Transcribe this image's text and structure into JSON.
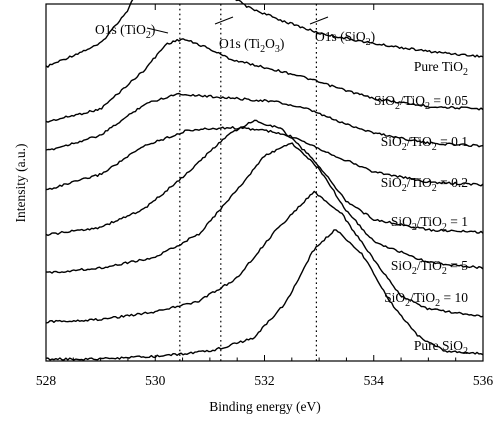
{
  "chart_data": {
    "type": "line",
    "xlabel": "Binding energy (eV)",
    "ylabel": "Intensity (a.u.)",
    "xlim": [
      528,
      536
    ],
    "x_ticks": [
      "528",
      "530",
      "532",
      "534",
      "536"
    ],
    "grid": false,
    "legend": "none (series labelled inline at right)",
    "reference_lines": [
      {
        "label": "O1s (TiO₂)",
        "x": 530.45
      },
      {
        "label": "O1s (Ti₂O₃)",
        "x": 531.2
      },
      {
        "label": "O1s (SiO₂)",
        "x": 532.95
      }
    ],
    "series": [
      {
        "name": "Pure TiO₂",
        "x": [
          528.0,
          529.0,
          529.5,
          529.9,
          530.2,
          530.5,
          530.8,
          531.2,
          531.7,
          532.3,
          533.0,
          534.0,
          535.0,
          536.0
        ],
        "y": [
          0.0,
          0.09,
          0.22,
          0.4,
          0.5,
          0.52,
          0.43,
          0.3,
          0.23,
          0.18,
          0.13,
          0.09,
          0.06,
          0.04
        ]
      },
      {
        "name": "SiO₂/TiO₂ = 0.05",
        "x": [
          528.0,
          529.0,
          529.8,
          530.2,
          530.5,
          530.9,
          531.4,
          532.0,
          532.6,
          533.2,
          534.0,
          535.0,
          536.0
        ],
        "y": [
          0.0,
          0.05,
          0.2,
          0.3,
          0.32,
          0.29,
          0.24,
          0.21,
          0.18,
          0.14,
          0.09,
          0.06,
          0.05
        ]
      },
      {
        "name": "SiO₂/TiO₂ = 0.1",
        "x": [
          528.0,
          529.0,
          529.8,
          530.4,
          531.0,
          531.6,
          532.2,
          532.8,
          533.4,
          534.0,
          535.0,
          536.0
        ],
        "y": [
          0.0,
          0.06,
          0.18,
          0.22,
          0.21,
          0.2,
          0.19,
          0.16,
          0.11,
          0.07,
          0.03,
          0.02
        ]
      },
      {
        "name": "SiO₂/TiO₂ = 0.2",
        "x": [
          528.0,
          529.0,
          529.8,
          530.6,
          531.4,
          532.0,
          532.6,
          533.2,
          534.0,
          535.0,
          536.0
        ],
        "y": [
          0.0,
          0.06,
          0.17,
          0.23,
          0.24,
          0.23,
          0.2,
          0.14,
          0.07,
          0.03,
          0.02
        ]
      },
      {
        "name": "SiO₂/TiO₂ = 1",
        "x": [
          528.0,
          529.0,
          529.8,
          530.6,
          531.3,
          531.8,
          532.3,
          532.9,
          533.5,
          534.0,
          535.0,
          536.0
        ],
        "y": [
          0.0,
          0.03,
          0.1,
          0.24,
          0.38,
          0.44,
          0.41,
          0.29,
          0.13,
          0.06,
          0.02,
          0.01
        ]
      },
      {
        "name": "SiO₂/TiO₂ = 5",
        "x": [
          528.0,
          529.0,
          530.0,
          530.8,
          531.5,
          532.0,
          532.5,
          533.0,
          533.5,
          534.0,
          535.0,
          536.0
        ],
        "y": [
          0.0,
          0.02,
          0.06,
          0.15,
          0.32,
          0.45,
          0.5,
          0.4,
          0.24,
          0.12,
          0.04,
          0.02
        ]
      },
      {
        "name": "SiO₂/TiO₂ = 10",
        "x": [
          528.0,
          529.0,
          530.0,
          530.8,
          531.5,
          532.2,
          532.9,
          533.4,
          534.0,
          534.5,
          535.0,
          536.0
        ],
        "y": [
          0.0,
          0.01,
          0.04,
          0.08,
          0.17,
          0.35,
          0.5,
          0.42,
          0.24,
          0.1,
          0.05,
          0.02
        ]
      },
      {
        "name": "Pure SiO₂",
        "x": [
          528.0,
          529.0,
          530.0,
          531.0,
          531.8,
          532.4,
          532.9,
          533.3,
          533.8,
          534.3,
          534.8,
          535.3,
          536.0
        ],
        "y": [
          0.0,
          0.0,
          0.01,
          0.03,
          0.08,
          0.22,
          0.42,
          0.5,
          0.4,
          0.22,
          0.09,
          0.03,
          0.02
        ]
      }
    ]
  }
}
